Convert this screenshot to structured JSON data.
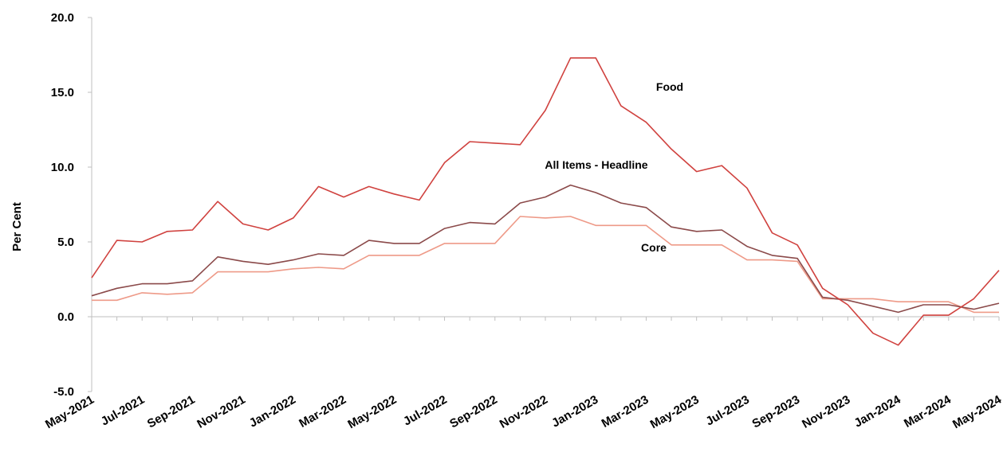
{
  "chart_data": {
    "type": "line",
    "ylabel": "Per Cent",
    "ylim": [
      -5.0,
      20.0
    ],
    "y_ticks": [
      "20.0",
      "15.0",
      "10.0",
      "5.0",
      "0.0",
      "-5.0"
    ],
    "x": [
      "May-2021",
      "Jun-2021",
      "Jul-2021",
      "Aug-2021",
      "Sep-2021",
      "Oct-2021",
      "Nov-2021",
      "Dec-2021",
      "Jan-2022",
      "Feb-2022",
      "Mar-2022",
      "Apr-2022",
      "May-2022",
      "Jun-2022",
      "Jul-2022",
      "Aug-2022",
      "Sep-2022",
      "Oct-2022",
      "Nov-2022",
      "Dec-2022",
      "Jan-2023",
      "Feb-2023",
      "Mar-2023",
      "Apr-2023",
      "May-2023",
      "Jun-2023",
      "Jul-2023",
      "Aug-2023",
      "Sep-2023",
      "Oct-2023",
      "Nov-2023",
      "Dec-2023",
      "Jan-2024",
      "Feb-2024",
      "Mar-2024",
      "Apr-2024",
      "May-2024"
    ],
    "x_tick_labels": [
      "May-2021",
      "Jul-2021",
      "Sep-2021",
      "Nov-2021",
      "Jan-2022",
      "Mar-2022",
      "May-2022",
      "Jul-2022",
      "Sep-2022",
      "Nov-2022",
      "Jan-2023",
      "Mar-2023",
      "May-2023",
      "Jul-2023",
      "Sep-2023",
      "Nov-2023",
      "Jan-2024",
      "Mar-2024",
      "May-2024"
    ],
    "grid": false,
    "series": [
      {
        "name": "Food",
        "color": "#d0423f",
        "values": [
          2.6,
          5.1,
          5.0,
          5.7,
          5.8,
          7.7,
          6.2,
          5.8,
          6.6,
          8.7,
          8.0,
          8.7,
          8.2,
          7.8,
          10.3,
          11.7,
          11.6,
          11.5,
          13.8,
          17.3,
          17.3,
          14.1,
          13.0,
          11.2,
          9.7,
          10.1,
          8.6,
          5.6,
          4.8,
          1.9,
          0.8,
          -1.1,
          -1.9,
          0.1,
          0.1,
          1.2,
          3.1
        ]
      },
      {
        "name": "All Items - Headline",
        "color": "#8b4a4a",
        "values": [
          1.4,
          1.9,
          2.2,
          2.2,
          2.4,
          4.0,
          3.7,
          3.5,
          3.8,
          4.2,
          4.1,
          5.1,
          4.9,
          4.9,
          5.9,
          6.3,
          6.2,
          7.6,
          8.0,
          8.8,
          8.3,
          7.6,
          7.3,
          6.0,
          5.7,
          5.8,
          4.7,
          4.1,
          3.9,
          1.3,
          1.1,
          0.7,
          0.3,
          0.8,
          0.8,
          0.5,
          0.9
        ]
      },
      {
        "name": "Core",
        "color": "#ee9a88",
        "values": [
          1.1,
          1.1,
          1.6,
          1.5,
          1.6,
          3.0,
          3.0,
          3.0,
          3.2,
          3.3,
          3.2,
          4.1,
          4.1,
          4.1,
          4.9,
          4.9,
          4.9,
          6.7,
          6.6,
          6.7,
          6.1,
          6.1,
          6.1,
          4.8,
          4.8,
          4.8,
          3.8,
          3.8,
          3.7,
          1.2,
          1.2,
          1.2,
          1.0,
          1.0,
          1.0,
          0.3,
          0.3
        ]
      }
    ]
  }
}
